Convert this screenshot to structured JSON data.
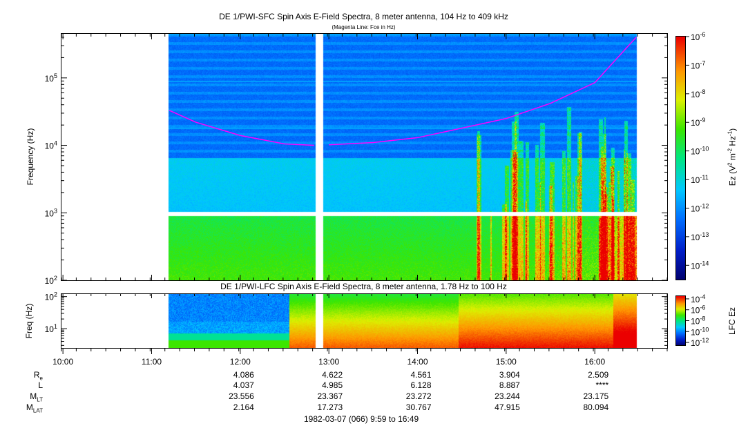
{
  "chart_data": [
    {
      "type": "heatmap",
      "title": "DE 1/PWI-SFC  Spin Axis E-Field Spectra, 8 meter antenna, 104 Hz to 409 kHz",
      "subtitle": "(Magenta Line: Fce in Hz)",
      "ylabel": "Frequency (Hz)",
      "yscale": "log",
      "ylim": [
        100,
        450000
      ],
      "y_ticks": [
        {
          "value": 100,
          "base": "10",
          "exp": "2"
        },
        {
          "value": 1000,
          "base": "10",
          "exp": "3"
        },
        {
          "value": 10000,
          "base": "10",
          "exp": "4"
        },
        {
          "value": 100000,
          "base": "10",
          "exp": "5"
        }
      ],
      "data_start": "11:11",
      "data_end": "16:28",
      "data_gap": [
        "12:51",
        "12:56"
      ],
      "missing_band_hz": [
        900,
        1050
      ],
      "fce_line": {
        "color": "#ff00ff",
        "label": "Fce",
        "points": [
          {
            "t": "11:12",
            "f": 33000
          },
          {
            "t": "11:30",
            "f": 22000
          },
          {
            "t": "12:00",
            "f": 14000
          },
          {
            "t": "12:30",
            "f": 10500
          },
          {
            "t": "12:50",
            "f": 10000
          },
          {
            "t": "13:00",
            "f": 10200
          },
          {
            "t": "13:30",
            "f": 11000
          },
          {
            "t": "14:00",
            "f": 13000
          },
          {
            "t": "14:30",
            "f": 18000
          },
          {
            "t": "15:00",
            "f": 25000
          },
          {
            "t": "15:30",
            "f": 42000
          },
          {
            "t": "16:00",
            "f": 85000
          },
          {
            "t": "16:28",
            "f": 400000
          }
        ]
      },
      "colorbar": {
        "label": "Ez (V",
        "label_sup1": "2",
        "label_mid": " m",
        "label_sup2": "-2",
        "label_mid2": " Hz",
        "label_sup3": "-1",
        "label_end": ")",
        "ticks": [
          {
            "value": -6,
            "base": "10",
            "exp": "-6"
          },
          {
            "value": -7,
            "base": "10",
            "exp": "-7"
          },
          {
            "value": -8,
            "base": "10",
            "exp": "-8"
          },
          {
            "value": -9,
            "base": "10",
            "exp": "-9"
          },
          {
            "value": -10,
            "base": "10",
            "exp": "-10"
          },
          {
            "value": -11,
            "base": "10",
            "exp": "-11"
          },
          {
            "value": -12,
            "base": "10",
            "exp": "-12"
          },
          {
            "value": -13,
            "base": "10",
            "exp": "-13"
          },
          {
            "value": -14,
            "base": "10",
            "exp": "-14"
          }
        ],
        "range": [
          -14.5,
          -6
        ]
      }
    },
    {
      "type": "heatmap",
      "title": "DE 1/PWI-LFC  Spin Axis E-Field Spectra, 8 meter antenna, 1.78 Hz to 100 Hz",
      "ylabel": "Freq (Hz)",
      "yscale": "log",
      "ylim": [
        2.5,
        120
      ],
      "y_ticks": [
        {
          "value": 10,
          "base": "10",
          "exp": "1"
        },
        {
          "value": 100,
          "base": "10",
          "exp": "2"
        }
      ],
      "data_start": "11:11",
      "data_end": "16:28",
      "data_gap": [
        "12:51",
        "12:56"
      ],
      "colorbar": {
        "label": "LFC Ez",
        "ticks": [
          {
            "value": -4,
            "base": "10",
            "exp": "-4"
          },
          {
            "value": -6,
            "base": "10",
            "exp": "-6"
          },
          {
            "value": -8,
            "base": "10",
            "exp": "-8"
          },
          {
            "value": -10,
            "base": "10",
            "exp": "-10"
          },
          {
            "value": -12,
            "base": "10",
            "exp": "-12"
          }
        ],
        "range": [
          -12.5,
          -3.5
        ]
      }
    }
  ],
  "time_axis": {
    "start": "9:59",
    "end": "16:49",
    "ticks": [
      "10:00",
      "11:00",
      "12:00",
      "13:00",
      "14:00",
      "15:00",
      "16:00"
    ],
    "footer": "1982-03-07 (066) 9:59 to 16:49"
  },
  "ephemeris": {
    "columns": [
      "12:00",
      "13:00",
      "14:00",
      "15:00",
      "16:00"
    ],
    "rows": [
      {
        "label": "R",
        "sub": "e",
        "values": [
          "4.086",
          "4.622",
          "4.561",
          "3.904",
          "2.509"
        ]
      },
      {
        "label": "L",
        "sub": "",
        "values": [
          "4.037",
          "4.985",
          "6.128",
          "8.887",
          "****"
        ]
      },
      {
        "label": "M",
        "sub": "LT",
        "values": [
          "23.556",
          "23.367",
          "23.272",
          "23.244",
          "23.175"
        ]
      },
      {
        "label": "M",
        "sub": "LAT",
        "values": [
          "2.164",
          "17.273",
          "30.767",
          "47.915",
          "80.094"
        ]
      }
    ]
  }
}
